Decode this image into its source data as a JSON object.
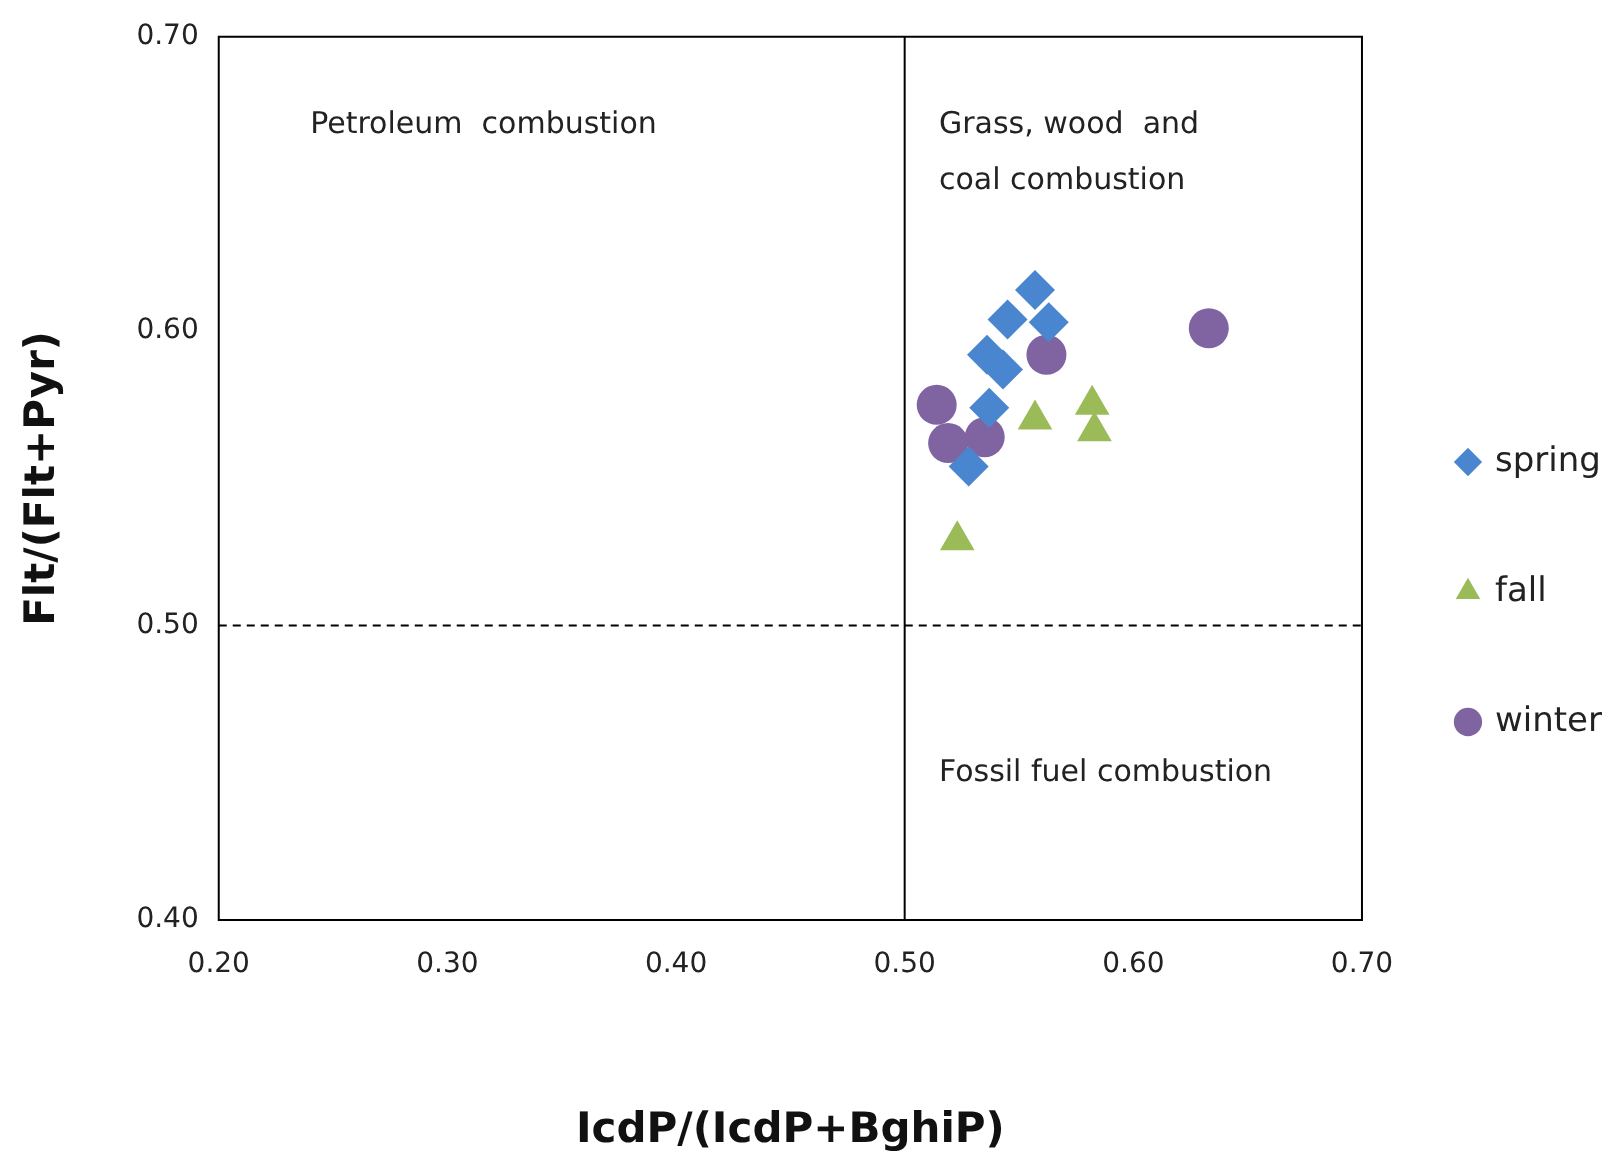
{
  "chart_data": {
    "type": "scatter",
    "xlabel": "IcdP/(IcdP+BghiP)",
    "ylabel": "Flt/(Flt+Pyr)",
    "xlim": [
      0.2,
      0.7
    ],
    "xticks": [
      {
        "value": 0.2,
        "label": "0.20"
      },
      {
        "value": 0.3,
        "label": "0.30"
      },
      {
        "value": 0.4,
        "label": "0.40"
      },
      {
        "value": 0.5,
        "label": "0.50"
      },
      {
        "value": 0.6,
        "label": "0.60"
      },
      {
        "value": 0.7,
        "label": "0.70"
      }
    ],
    "ylim": [
      0.4,
      0.7
    ],
    "yticks": [
      {
        "value": 0.4,
        "label": "0.40"
      },
      {
        "value": 0.5,
        "label": "0.50"
      },
      {
        "value": 0.6,
        "label": "0.60"
      },
      {
        "value": 0.7,
        "label": "0.70"
      }
    ],
    "grid": false,
    "legend": "right",
    "series": [
      {
        "name": "spring",
        "color": "#4a86d0",
        "marker": "diamond",
        "x": [
          0.557,
          0.545,
          0.563,
          0.536,
          0.543,
          0.537,
          0.528
        ],
        "values": [
          0.614,
          0.604,
          0.603,
          0.592,
          0.587,
          0.574,
          0.554
        ]
      },
      {
        "name": "fall",
        "color": "#9bbb59",
        "marker": "triangle",
        "x": [
          0.557,
          0.582,
          0.583,
          0.523
        ],
        "values": [
          0.57,
          0.575,
          0.566,
          0.529
        ]
      },
      {
        "name": "winter",
        "color": "#8064a2",
        "marker": "circle",
        "x": [
          0.633,
          0.562,
          0.514,
          0.519,
          0.535
        ],
        "values": [
          0.601,
          0.592,
          0.575,
          0.562,
          0.564
        ]
      }
    ],
    "ref_lines": [
      {
        "axis": "x",
        "value": 0.5,
        "color": "#000000",
        "line_style": "solid"
      },
      {
        "axis": "y",
        "value": 0.5,
        "color": "#000000",
        "line_style": "dashed"
      }
    ],
    "annotations": [
      "Petroleum  combustion",
      "Grass, wood  and\ncoal combustion",
      "Fossil fuel combustion"
    ]
  }
}
